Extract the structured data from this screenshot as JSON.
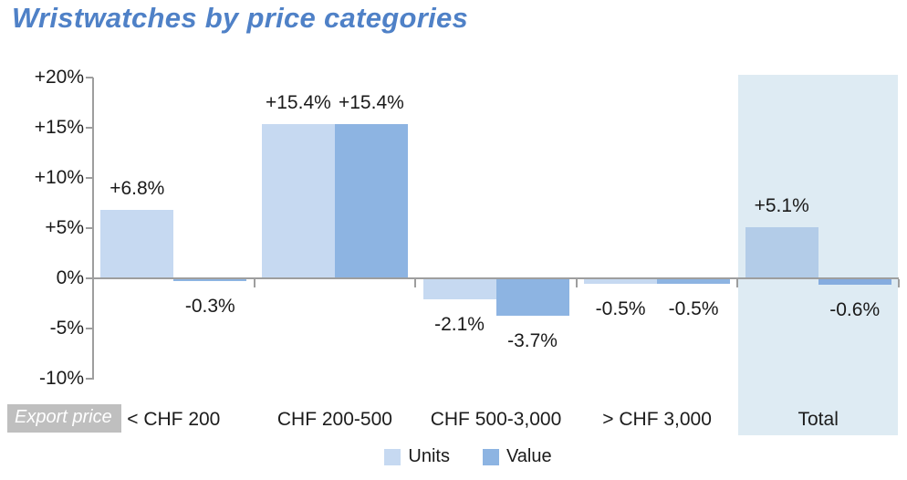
{
  "chart_data": {
    "type": "bar",
    "title": "Wristwatches by price categories",
    "categories": [
      "< CHF 200",
      "CHF 200-500",
      "CHF 500-3,000",
      "> CHF 3,000",
      "Total"
    ],
    "series": [
      {
        "name": "Units",
        "color": "#c6d9f1",
        "values": [
          6.8,
          15.4,
          -2.1,
          -0.5,
          5.1
        ],
        "labels": [
          "+6.8%",
          "+15.4%",
          "-2.1%",
          "-0.5%",
          "+5.1%"
        ]
      },
      {
        "name": "Value",
        "color": "#8db4e2",
        "values": [
          -0.3,
          15.4,
          -3.7,
          -0.5,
          -0.6
        ],
        "labels": [
          "-0.3%",
          "+15.4%",
          "-3.7%",
          "-0.5%",
          "-0.6%"
        ]
      }
    ],
    "ylim": [
      -10,
      20
    ],
    "yticks": [
      {
        "v": 20,
        "label": "+20%"
      },
      {
        "v": 15,
        "label": "+15%"
      },
      {
        "v": 10,
        "label": "+10%"
      },
      {
        "v": 5,
        "label": "+5%"
      },
      {
        "v": 0,
        "label": "0%"
      },
      {
        "v": -5,
        "label": "-5%"
      },
      {
        "v": -10,
        "label": "-10%"
      }
    ],
    "grid": false,
    "legend_position": "bottom",
    "highlight_category": "Total",
    "total_colors": {
      "Units": "#b3cce8",
      "Value": "#85acdf"
    }
  },
  "annotations": {
    "export_price_label": "Export price"
  },
  "colors": {
    "title": "#4f81c7",
    "axis": "#9e9e9e",
    "highlight": "#deebf3",
    "export_price_bg": "#bfbfbf",
    "label_text": "#1a1a1a"
  }
}
